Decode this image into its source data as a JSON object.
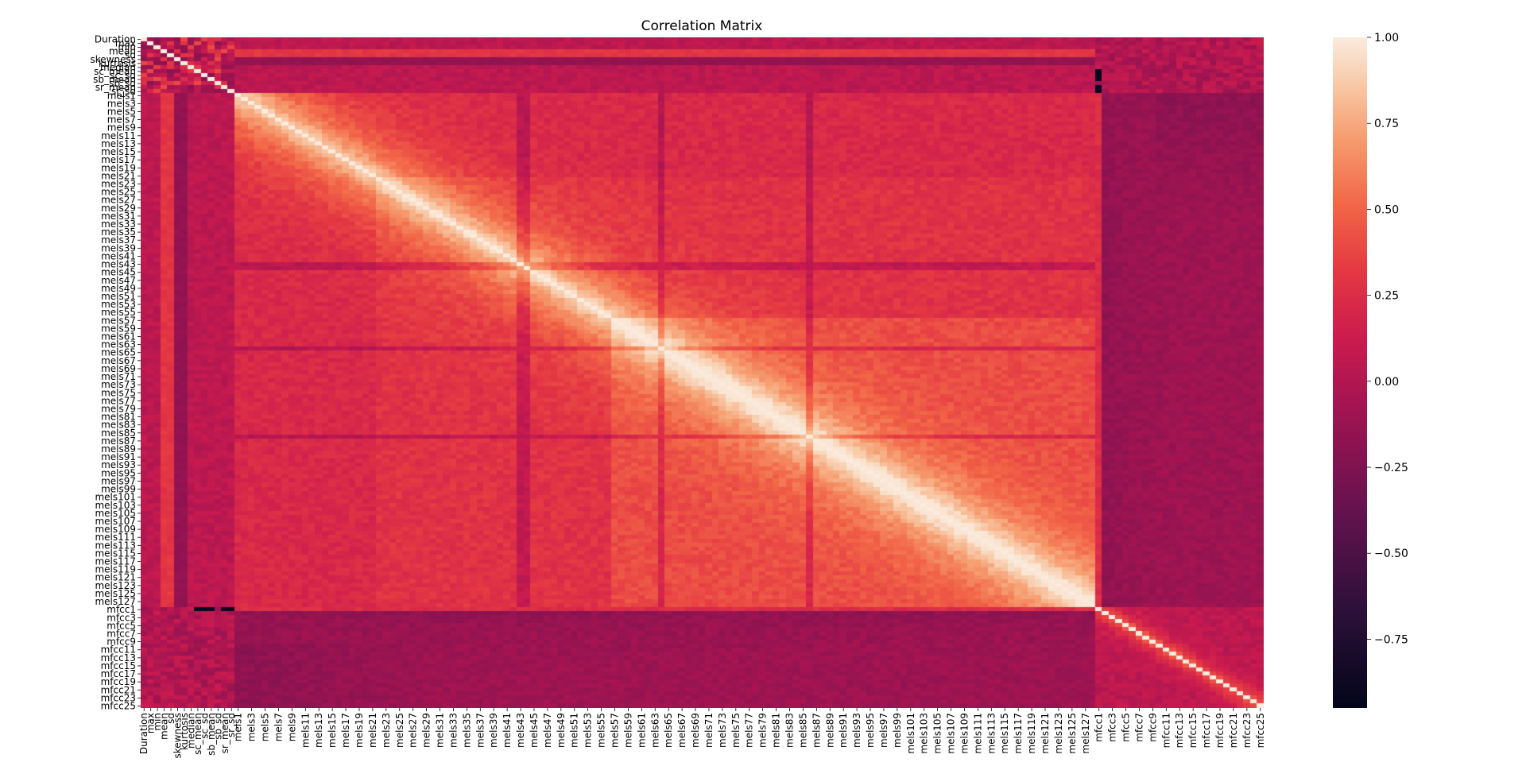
{
  "chart_data": {
    "type": "heatmap",
    "title": "Correlation Matrix",
    "xlabel": "",
    "ylabel": "",
    "colormap": "rocket",
    "colorbar": {
      "min": -0.95,
      "max": 1.0,
      "ticks": [
        1.0,
        0.75,
        0.5,
        0.25,
        0.0,
        -0.25,
        -0.5,
        -0.75
      ],
      "tick_labels": [
        "1.00",
        "0.75",
        "0.50",
        "0.25",
        "0.00",
        "−0.25",
        "−0.50",
        "−0.75"
      ]
    },
    "feature_groups": {
      "basic": [
        "Duration",
        "max",
        "min",
        "mean",
        "sd",
        "skewness",
        "kurtosis",
        "median",
        "sc_mean",
        "sc_sd",
        "sb_mean",
        "sb_sd",
        "sr_mean",
        "sr_sd"
      ],
      "mels": {
        "prefix": "mels",
        "count": 128
      },
      "mfcc": {
        "prefix": "mfcc",
        "count": 25
      }
    },
    "x_tick_labels": [
      "Duration",
      "max",
      "min",
      "mean",
      "sd",
      "skewness",
      "kurtosis",
      "median",
      "sc_mean",
      "sc_sd",
      "sb_mean",
      "sb_sd",
      "sr_mean",
      "sr_sd",
      "mels1",
      "mels3",
      "mels5",
      "mels7",
      "mels9",
      "mels11",
      "mels13",
      "mels15",
      "mels17",
      "mels19",
      "mels21",
      "mels23",
      "mels25",
      "mels27",
      "mels29",
      "mels31",
      "mels33",
      "mels35",
      "mels37",
      "mels39",
      "mels41",
      "mels43",
      "mels45",
      "mels47",
      "mels49",
      "mels51",
      "mels53",
      "mels55",
      "mels57",
      "mels59",
      "mels61",
      "mels63",
      "mels65",
      "mels67",
      "mels69",
      "mels71",
      "mels73",
      "mels75",
      "mels77",
      "mels79",
      "mels81",
      "mels83",
      "mels85",
      "mels87",
      "mels89",
      "mels91",
      "mels93",
      "mels95",
      "mels97",
      "mels99",
      "mels101",
      "mels103",
      "mels105",
      "mels107",
      "mels109",
      "mels111",
      "mels113",
      "mels115",
      "mels117",
      "mels119",
      "mels121",
      "mels123",
      "mels125",
      "mels127",
      "mfcc1",
      "mfcc3",
      "mfcc5",
      "mfcc7",
      "mfcc9",
      "mfcc11",
      "mfcc13",
      "mfcc15",
      "mfcc17",
      "mfcc19",
      "mfcc21",
      "mfcc23",
      "mfcc25"
    ],
    "y_tick_labels": [
      "Duration",
      "max",
      "min",
      "mean",
      "sd",
      "skewness",
      "kurtosis",
      "median",
      "sc_mean",
      "sc_sd",
      "sb_mean",
      "sb_sd",
      "sr_mean",
      "sr_sd",
      "mels1",
      "mels3",
      "mels5",
      "mels7",
      "mels9",
      "mels11",
      "mels13",
      "mels15",
      "mels17",
      "mels19",
      "mels21",
      "mels23",
      "mels25",
      "mels27",
      "mels29",
      "mels31",
      "mels33",
      "mels35",
      "mels37",
      "mels39",
      "mels41",
      "mels43",
      "mels45",
      "mels47",
      "mels49",
      "mels51",
      "mels53",
      "mels55",
      "mels57",
      "mels59",
      "mels61",
      "mels63",
      "mels65",
      "mels67",
      "mels69",
      "mels71",
      "mels73",
      "mels75",
      "mels77",
      "mels79",
      "mels81",
      "mels83",
      "mels85",
      "mels87",
      "mels89",
      "mels91",
      "mels93",
      "mels95",
      "mels97",
      "mels99",
      "mels101",
      "mels103",
      "mels105",
      "mels107",
      "mels109",
      "mels111",
      "mels113",
      "mels115",
      "mels117",
      "mels119",
      "mels121",
      "mels123",
      "mels125",
      "mels127",
      "mfcc1",
      "mfcc3",
      "mfcc5",
      "mfcc7",
      "mfcc9",
      "mfcc11",
      "mfcc13",
      "mfcc15",
      "mfcc17",
      "mfcc19",
      "mfcc21",
      "mfcc23",
      "mfcc25"
    ],
    "approx_correlations": {
      "diagonal": 1.0,
      "mels_vs_mels_adjacent": 0.95,
      "mels_vs_mels_distant": 0.3,
      "mels_vs_mfcc": -0.15,
      "mfcc_vs_mfcc_offdiag": 0.05,
      "sc_mean_vs_mfcc1": -0.95,
      "sb_mean_vs_mfcc1": -0.9,
      "sr_mean_vs_mfcc1": -0.95
    }
  }
}
